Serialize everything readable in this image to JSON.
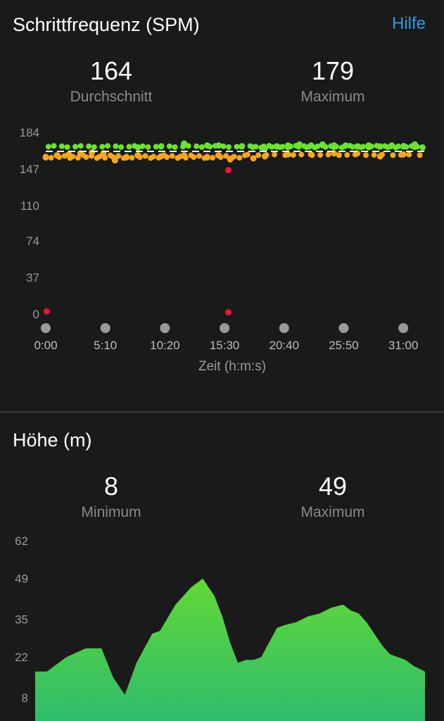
{
  "cadence": {
    "title": "Schrittfrequenz (SPM)",
    "help_label": "Hilfe",
    "avg": {
      "value": "164",
      "label": "Durchschnitt"
    },
    "max": {
      "value": "179",
      "label": "Maximum"
    },
    "chart_data": {
      "type": "scatter",
      "title": "",
      "xlabel": "Zeit (h:m:s)",
      "ylabel": "",
      "y_ticks": [
        "184",
        "147",
        "110",
        "74",
        "37",
        "0"
      ],
      "x_ticks": [
        "0:00",
        "5:10",
        "10:20",
        "15:30",
        "20:40",
        "25:50",
        "31:00"
      ],
      "ylim": [
        0,
        184
      ],
      "x_range_seconds": [
        0,
        1973
      ],
      "average_line": 164,
      "colors": {
        "high": "#6be234",
        "mid": "#f5a623",
        "low": "#e8173a",
        "avg_line": "#ffffff"
      },
      "series": [
        {
          "color_key": "mid",
          "approx_points": [
            [
              0,
              158
            ],
            [
              60,
              160
            ],
            [
              120,
              161
            ],
            [
              180,
              162
            ],
            [
              240,
              163
            ],
            [
              300,
              162
            ],
            [
              360,
              155
            ],
            [
              420,
              158
            ],
            [
              480,
              160
            ],
            [
              600,
              159
            ],
            [
              720,
              160
            ],
            [
              840,
              158
            ],
            [
              900,
              160
            ],
            [
              960,
              156
            ],
            [
              1080,
              157
            ],
            [
              1140,
              159
            ],
            [
              1260,
              161
            ],
            [
              1380,
              161
            ],
            [
              1500,
              162
            ],
            [
              1620,
              162
            ],
            [
              1740,
              159
            ],
            [
              1860,
              161
            ]
          ]
        },
        {
          "color_key": "high",
          "approx_points": [
            [
              480,
              168
            ],
            [
              600,
              169
            ],
            [
              720,
              172
            ],
            [
              840,
              170
            ],
            [
              900,
              170
            ],
            [
              1020,
              169
            ],
            [
              1140,
              167
            ],
            [
              1200,
              169
            ],
            [
              1260,
              170
            ],
            [
              1320,
              171
            ],
            [
              1380,
              170
            ],
            [
              1440,
              171
            ],
            [
              1500,
              170
            ],
            [
              1560,
              170
            ],
            [
              1620,
              169
            ],
            [
              1680,
              170
            ],
            [
              1740,
              169
            ],
            [
              1800,
              170
            ],
            [
              1860,
              169
            ],
            [
              1920,
              171
            ],
            [
              1960,
              168
            ]
          ]
        },
        {
          "color_key": "low",
          "approx_points": [
            [
              950,
              145
            ],
            [
              5,
              2
            ],
            [
              950,
              1
            ]
          ]
        }
      ]
    }
  },
  "elevation": {
    "title": "Höhe (m)",
    "min": {
      "value": "8",
      "label": "Minimum"
    },
    "max": {
      "value": "49",
      "label": "Maximum"
    },
    "chart_data": {
      "type": "area",
      "title": "",
      "y_ticks": [
        "62",
        "49",
        "35",
        "22",
        "8"
      ],
      "ylim": [
        0,
        62
      ],
      "colors": {
        "top": "#62d836",
        "bottom": "#2ebd6b"
      },
      "x_fraction": [
        0,
        0.03,
        0.08,
        0.13,
        0.17,
        0.2,
        0.23,
        0.26,
        0.3,
        0.32,
        0.36,
        0.4,
        0.43,
        0.46,
        0.48,
        0.5,
        0.52,
        0.54,
        0.56,
        0.58,
        0.6,
        0.62,
        0.64,
        0.67,
        0.7,
        0.73,
        0.76,
        0.79,
        0.81,
        0.83,
        0.85,
        0.87,
        0.89,
        0.91,
        0.93,
        0.95,
        0.97,
        1.0
      ],
      "values": [
        17,
        17,
        22,
        25,
        25,
        15,
        9,
        20,
        30,
        31,
        40,
        46,
        49,
        43,
        36,
        27,
        20,
        21,
        21,
        22,
        27,
        32,
        33,
        34,
        36,
        37,
        39,
        40,
        38,
        37,
        34,
        30,
        26,
        23,
        22,
        21,
        19,
        17
      ]
    }
  }
}
